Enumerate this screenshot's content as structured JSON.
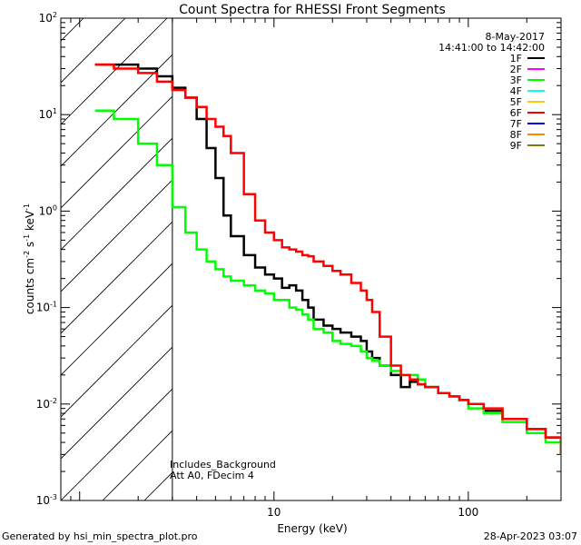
{
  "chart_data": {
    "type": "line",
    "title": "Count Spectra for RHESSI Front Segments",
    "xlabel": "Energy (keV)",
    "ylabel": "counts cm-2 s-1 keV-1",
    "xscale": "log",
    "yscale": "log",
    "xlim": [
      0.8,
      300
    ],
    "ylim": [
      0.001,
      100
    ],
    "x_ticks": [
      {
        "v": 10,
        "label": "10"
      },
      {
        "v": 100,
        "label": "100"
      }
    ],
    "y_ticks": [
      {
        "v": 0.001,
        "base": "10",
        "exp": "-3"
      },
      {
        "v": 0.01,
        "base": "10",
        "exp": "-2"
      },
      {
        "v": 0.1,
        "base": "10",
        "exp": "-1"
      },
      {
        "v": 1,
        "base": "10",
        "exp": "0"
      },
      {
        "v": 10,
        "base": "10",
        "exp": "1"
      },
      {
        "v": 100,
        "base": "10",
        "exp": "2"
      }
    ],
    "date": "8-May-2017",
    "time_range": "14:41:00 to 14:42:00",
    "legend": [
      {
        "name": "1F",
        "color": "#000000"
      },
      {
        "name": "2F",
        "color": "#ff00ff"
      },
      {
        "name": "3F",
        "color": "#00ff00"
      },
      {
        "name": "4F",
        "color": "#00ffff"
      },
      {
        "name": "5F",
        "color": "#ffcc00"
      },
      {
        "name": "6F",
        "color": "#ff0000"
      },
      {
        "name": "7F",
        "color": "#0000ff"
      },
      {
        "name": "8F",
        "color": "#ff8800"
      },
      {
        "name": "9F",
        "color": "#808000"
      }
    ],
    "annotations": [
      "Includes_Background",
      "Att A0, FDecim 4"
    ],
    "shaded_region": {
      "x_min": 0.8,
      "x_max": 3.0,
      "pattern": "diagonal hatch"
    },
    "series": [
      {
        "name": "1F",
        "color": "#000000",
        "x": [
          1.2,
          1.5,
          2,
          2.5,
          3,
          3.5,
          4,
          4.5,
          5,
          5.5,
          6,
          7,
          8,
          9,
          10,
          11,
          12,
          13,
          14,
          15,
          16,
          18,
          20,
          22,
          25,
          28,
          30,
          32,
          35,
          40,
          45,
          50,
          55,
          60,
          70,
          80,
          90,
          100,
          120,
          150,
          200,
          250,
          300
        ],
        "y": [
          33,
          33,
          30,
          25,
          19,
          15,
          9,
          4.5,
          2.2,
          0.9,
          0.55,
          0.35,
          0.26,
          0.22,
          0.2,
          0.16,
          0.17,
          0.15,
          0.12,
          0.1,
          0.075,
          0.065,
          0.06,
          0.055,
          0.05,
          0.045,
          0.035,
          0.03,
          0.025,
          0.02,
          0.015,
          0.017,
          0.016,
          0.015,
          0.013,
          0.012,
          0.011,
          0.01,
          0.0085,
          0.007,
          0.0055,
          0.0045,
          0.003
        ]
      },
      {
        "name": "3F",
        "color": "#00ff00",
        "x": [
          1.2,
          1.5,
          2,
          2.5,
          3,
          3.5,
          4,
          4.5,
          5,
          5.5,
          6,
          7,
          8,
          9,
          10,
          11,
          12,
          13,
          14,
          15,
          16,
          18,
          20,
          22,
          25,
          28,
          30,
          32,
          35,
          40,
          45,
          50,
          55,
          60,
          70,
          80,
          90,
          100,
          120,
          150,
          200,
          250,
          300
        ],
        "y": [
          11,
          9,
          5,
          3,
          1.1,
          0.6,
          0.4,
          0.3,
          0.25,
          0.21,
          0.19,
          0.17,
          0.15,
          0.14,
          0.12,
          0.12,
          0.1,
          0.095,
          0.085,
          0.075,
          0.06,
          0.055,
          0.045,
          0.042,
          0.04,
          0.035,
          0.03,
          0.028,
          0.025,
          0.022,
          0.02,
          0.02,
          0.018,
          0.015,
          0.013,
          0.012,
          0.011,
          0.009,
          0.008,
          0.0065,
          0.005,
          0.004,
          0.003
        ]
      },
      {
        "name": "6F",
        "color": "#ff0000",
        "x": [
          1.2,
          1.5,
          2,
          2.5,
          3,
          3.5,
          4,
          4.5,
          5,
          5.5,
          6,
          7,
          8,
          9,
          10,
          11,
          12,
          13,
          14,
          15,
          16,
          18,
          20,
          22,
          25,
          28,
          30,
          32,
          35,
          40,
          45,
          50,
          55,
          60,
          70,
          80,
          90,
          100,
          120,
          150,
          200,
          250,
          300
        ],
        "y": [
          33,
          30,
          27,
          22,
          18,
          15,
          12,
          9,
          7.5,
          6,
          4,
          1.5,
          0.8,
          0.6,
          0.5,
          0.42,
          0.4,
          0.38,
          0.35,
          0.34,
          0.3,
          0.27,
          0.24,
          0.22,
          0.18,
          0.15,
          0.12,
          0.09,
          0.05,
          0.025,
          0.02,
          0.018,
          0.016,
          0.015,
          0.013,
          0.012,
          0.011,
          0.01,
          0.009,
          0.007,
          0.0055,
          0.0045,
          0.003
        ]
      }
    ]
  },
  "footer": {
    "generated_by": "Generated by hsi_min_spectra_plot.pro",
    "timestamp": "28-Apr-2023 03:07"
  }
}
